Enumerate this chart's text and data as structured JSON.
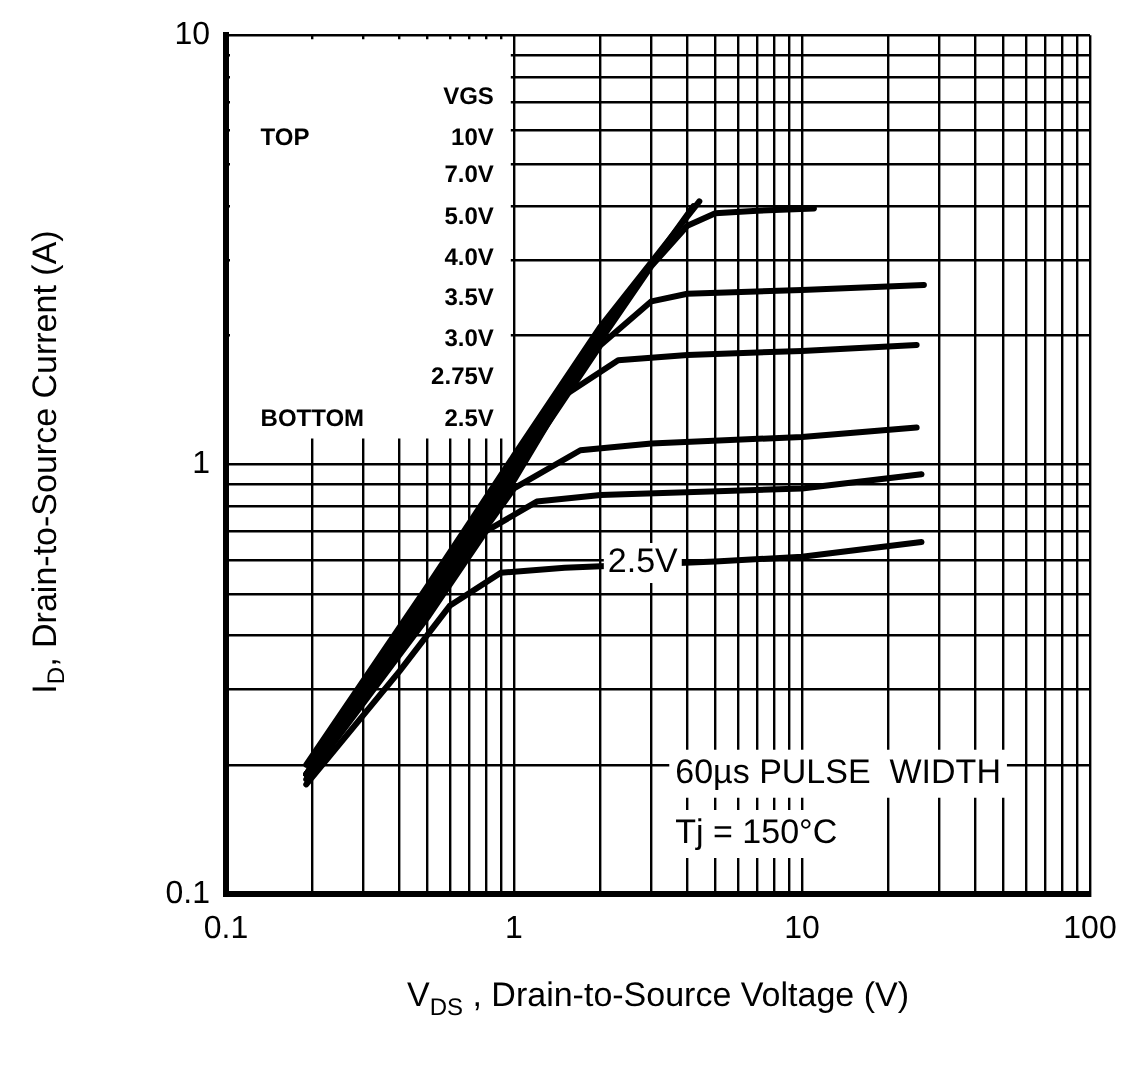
{
  "chart_data": {
    "type": "line",
    "log": "xy",
    "grid": true,
    "legend": false,
    "marker": "none",
    "line_style": "solid",
    "xlabel": "V$_{DS}$ , Drain-to-Source Voltage (V)",
    "ylabel": "I$_{D}$,  Drain-to-Source Current  (A)",
    "xlim": [
      0.1,
      100
    ],
    "ylim": [
      0.1,
      10
    ],
    "xticks": [
      0.1,
      {
        "value": 0.2,
        "label": null
      },
      {
        "value": 0.3,
        "label": null
      },
      {
        "value": 0.4,
        "label": null
      },
      {
        "value": 0.5,
        "label": null
      },
      {
        "value": 0.6,
        "label": null
      },
      {
        "value": 0.7,
        "label": null
      },
      {
        "value": 0.8,
        "label": null
      },
      {
        "value": 0.9,
        "label": null
      },
      1,
      {
        "value": 2,
        "label": null
      },
      {
        "value": 3,
        "label": null
      },
      {
        "value": 4,
        "label": null
      },
      {
        "value": 5,
        "label": null
      },
      {
        "value": 6,
        "label": null
      },
      {
        "value": 7,
        "label": null
      },
      {
        "value": 8,
        "label": null
      },
      {
        "value": 9,
        "label": null
      },
      10,
      {
        "value": 20,
        "label": null
      },
      {
        "value": 30,
        "label": null
      },
      {
        "value": 40,
        "label": null
      },
      {
        "value": 50,
        "label": null
      },
      {
        "value": 60,
        "label": null
      },
      {
        "value": 70,
        "label": null
      },
      {
        "value": 80,
        "label": null
      },
      {
        "value": 90,
        "label": null
      },
      100
    ],
    "yticks": [
      0.1,
      {
        "value": 0.2,
        "label": null
      },
      {
        "value": 0.3,
        "label": null
      },
      {
        "value": 0.4,
        "label": null
      },
      {
        "value": 0.5,
        "label": null
      },
      {
        "value": 0.6,
        "label": null
      },
      {
        "value": 0.7,
        "label": null
      },
      {
        "value": 0.8,
        "label": null
      },
      {
        "value": 0.9,
        "label": null
      },
      1,
      {
        "value": 2,
        "label": null
      },
      {
        "value": 3,
        "label": null
      },
      {
        "value": 4,
        "label": null
      },
      {
        "value": 5,
        "label": null
      },
      {
        "value": 6,
        "label": null
      },
      {
        "value": 7,
        "label": null
      },
      {
        "value": 8,
        "label": null
      },
      {
        "value": 9,
        "label": null
      },
      10
    ],
    "series": [
      {
        "color": "#000000",
        "x": [
          0.19,
          0.5,
          1,
          2,
          4.4
        ],
        "values": [
          0.2,
          0.52,
          1.05,
          2.1,
          4.1
        ]
      },
      {
        "color": "#000000",
        "x": [
          0.19,
          0.5,
          1,
          2,
          4.2
        ],
        "values": [
          0.19,
          0.5,
          1.0,
          2.0,
          4.0
        ]
      },
      {
        "color": "#000000",
        "x": [
          0.19,
          0.5,
          1,
          2,
          3,
          4,
          5,
          7,
          11
        ],
        "values": [
          0.19,
          0.49,
          0.98,
          1.95,
          2.9,
          3.6,
          3.85,
          3.9,
          3.95
        ]
      },
      {
        "color": "#000000",
        "x": [
          0.19,
          0.5,
          1,
          2,
          3,
          4,
          10,
          26.5
        ],
        "values": [
          0.19,
          0.48,
          0.95,
          1.9,
          2.4,
          2.5,
          2.55,
          2.62
        ]
      },
      {
        "color": "#000000",
        "x": [
          0.19,
          0.5,
          1,
          1.5,
          2.3,
          4,
          10,
          25
        ],
        "values": [
          0.19,
          0.47,
          0.92,
          1.45,
          1.75,
          1.8,
          1.84,
          1.9
        ]
      },
      {
        "color": "#000000",
        "x": [
          0.19,
          0.5,
          1,
          1.7,
          3,
          10,
          25
        ],
        "values": [
          0.19,
          0.46,
          0.88,
          1.08,
          1.12,
          1.16,
          1.22
        ]
      },
      {
        "color": "#000000",
        "x": [
          0.19,
          0.5,
          0.8,
          1.2,
          2,
          10,
          26
        ],
        "values": [
          0.185,
          0.44,
          0.7,
          0.82,
          0.85,
          0.88,
          0.95
        ]
      },
      {
        "color": "#000000",
        "x": [
          0.19,
          0.4,
          0.6,
          0.9,
          1.5,
          5,
          10,
          26
        ],
        "values": [
          0.18,
          0.33,
          0.47,
          0.56,
          0.575,
          0.595,
          0.61,
          0.66
        ]
      }
    ],
    "annotations": [
      "VGS",
      "TOP",
      "10V",
      "7.0V",
      "5.0V",
      "4.0V",
      "3.5V",
      "3.0V",
      "2.75V",
      "BOTTOM",
      "2.5V",
      {
        "text": "2.5V",
        "x": 2.8,
        "y": 0.59
      },
      "60µs PULSE  WIDTH",
      "Tj = 150°C"
    ]
  }
}
